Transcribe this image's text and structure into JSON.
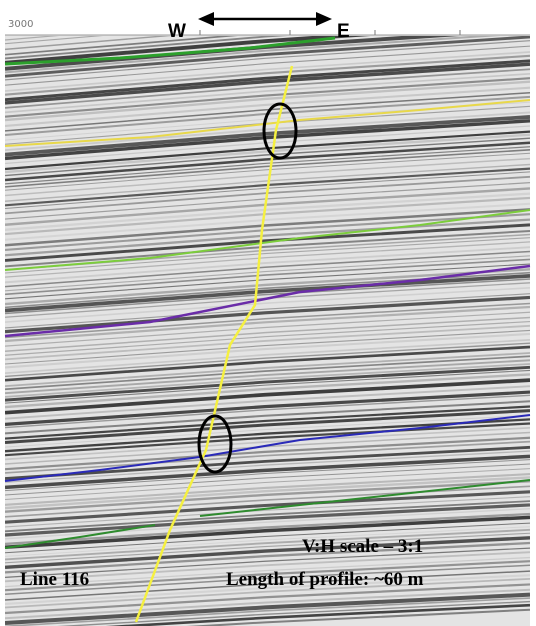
{
  "scale_label": "3000",
  "direction": {
    "west": "W",
    "east": "E"
  },
  "annotations": {
    "scale": "V:H scale – 3:1",
    "line": "Line 116",
    "length": "Length of profile: ~60 m"
  }
}
